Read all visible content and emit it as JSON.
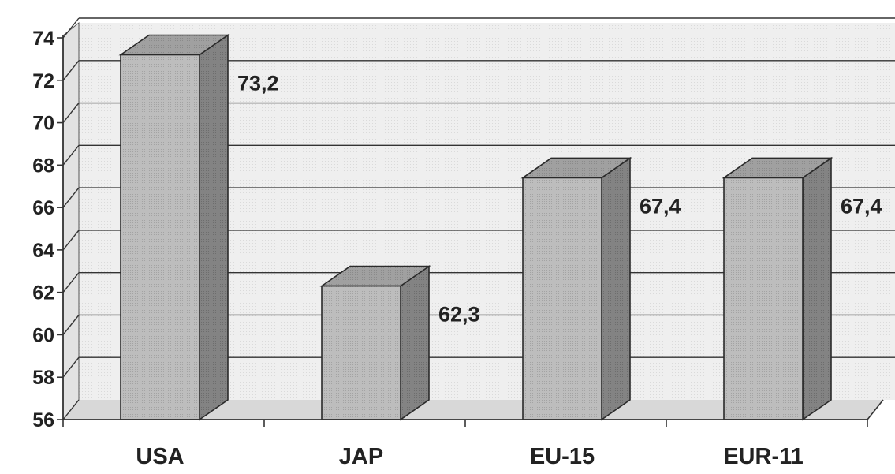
{
  "chart_data": {
    "type": "bar",
    "style": "3d-column",
    "categories": [
      "USA",
      "JAP",
      "EU-15",
      "EUR-11"
    ],
    "values": [
      73.2,
      62.3,
      67.4,
      67.4
    ],
    "value_labels": [
      "73,2",
      "62,3",
      "67,4",
      "67,4"
    ],
    "ylim": [
      56,
      74
    ],
    "yticks": [
      56,
      58,
      60,
      62,
      64,
      66,
      68,
      70,
      72,
      74
    ],
    "ytick_labels": [
      "56",
      "58",
      "60",
      "62",
      "64",
      "66",
      "68",
      "70",
      "72",
      "74"
    ],
    "title": "",
    "xlabel": "",
    "ylabel": "",
    "grid": true,
    "legend": "none",
    "colors": {
      "bar_front": "#b8b8b8",
      "bar_top": "#9a9a9a",
      "bar_side": "#7c7c7c",
      "outline": "#2a2a2a",
      "wall": "#ececec",
      "floor": "#dcdcdc",
      "gridline": "#333333"
    }
  }
}
